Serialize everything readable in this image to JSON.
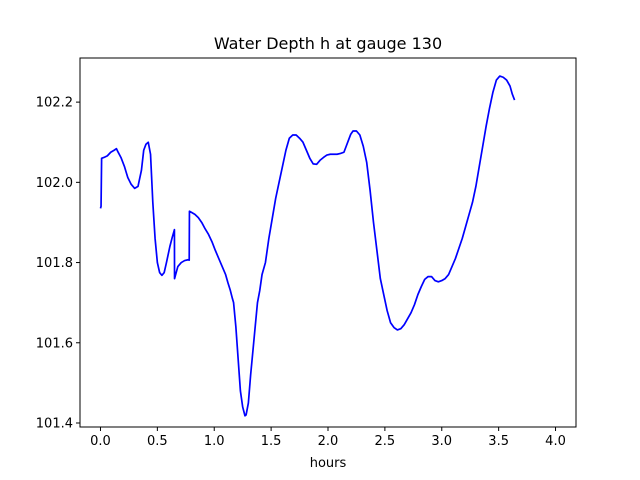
{
  "chart_data": {
    "type": "line",
    "title": "Water Depth h at gauge 130",
    "xlabel": "hours",
    "ylabel": "",
    "xlim": [
      -0.18,
      4.18
    ],
    "ylim": [
      101.39,
      102.31
    ],
    "xticks": [
      0.0,
      0.5,
      1.0,
      1.5,
      2.0,
      2.5,
      3.0,
      3.5,
      4.0
    ],
    "xtick_labels": [
      "0.0",
      "0.5",
      "1.0",
      "1.5",
      "2.0",
      "2.5",
      "3.0",
      "3.5",
      "4.0"
    ],
    "yticks": [
      101.4,
      101.6,
      101.8,
      102.0,
      102.2
    ],
    "ytick_labels": [
      "101.4",
      "101.6",
      "101.8",
      "102.0",
      "102.2"
    ],
    "grid": false,
    "series": [
      {
        "color": "#0000ff",
        "points": [
          [
            0.0,
            101.935
          ],
          [
            0.005,
            101.94
          ],
          [
            0.01,
            102.06
          ],
          [
            0.03,
            102.062
          ],
          [
            0.06,
            102.066
          ],
          [
            0.09,
            102.075
          ],
          [
            0.12,
            102.08
          ],
          [
            0.14,
            102.084
          ],
          [
            0.15,
            102.078
          ],
          [
            0.18,
            102.062
          ],
          [
            0.21,
            102.04
          ],
          [
            0.24,
            102.012
          ],
          [
            0.27,
            101.995
          ],
          [
            0.3,
            101.985
          ],
          [
            0.33,
            101.99
          ],
          [
            0.36,
            102.03
          ],
          [
            0.38,
            102.08
          ],
          [
            0.4,
            102.095
          ],
          [
            0.42,
            102.1
          ],
          [
            0.44,
            102.07
          ],
          [
            0.46,
            101.95
          ],
          [
            0.48,
            101.86
          ],
          [
            0.5,
            101.8
          ],
          [
            0.52,
            101.775
          ],
          [
            0.54,
            101.768
          ],
          [
            0.56,
            101.775
          ],
          [
            0.58,
            101.8
          ],
          [
            0.61,
            101.84
          ],
          [
            0.63,
            101.862
          ],
          [
            0.65,
            101.882
          ],
          [
            0.651,
            101.76
          ],
          [
            0.68,
            101.79
          ],
          [
            0.71,
            101.8
          ],
          [
            0.74,
            101.805
          ],
          [
            0.77,
            101.807
          ],
          [
            0.78,
            101.806
          ],
          [
            0.782,
            101.928
          ],
          [
            0.8,
            101.925
          ],
          [
            0.83,
            101.92
          ],
          [
            0.86,
            101.912
          ],
          [
            0.89,
            101.9
          ],
          [
            0.92,
            101.884
          ],
          [
            0.95,
            101.87
          ],
          [
            0.98,
            101.852
          ],
          [
            1.01,
            101.83
          ],
          [
            1.04,
            101.81
          ],
          [
            1.07,
            101.79
          ],
          [
            1.1,
            101.77
          ],
          [
            1.12,
            101.75
          ],
          [
            1.14,
            101.732
          ],
          [
            1.16,
            101.71
          ],
          [
            1.17,
            101.7
          ],
          [
            1.19,
            101.64
          ],
          [
            1.21,
            101.56
          ],
          [
            1.23,
            101.48
          ],
          [
            1.25,
            101.44
          ],
          [
            1.27,
            101.418
          ],
          [
            1.28,
            101.42
          ],
          [
            1.3,
            101.45
          ],
          [
            1.32,
            101.52
          ],
          [
            1.34,
            101.58
          ],
          [
            1.36,
            101.64
          ],
          [
            1.38,
            101.7
          ],
          [
            1.4,
            101.73
          ],
          [
            1.42,
            101.77
          ],
          [
            1.45,
            101.8
          ],
          [
            1.48,
            101.86
          ],
          [
            1.51,
            101.91
          ],
          [
            1.54,
            101.96
          ],
          [
            1.57,
            102.0
          ],
          [
            1.6,
            102.04
          ],
          [
            1.63,
            102.08
          ],
          [
            1.66,
            102.11
          ],
          [
            1.69,
            102.118
          ],
          [
            1.72,
            102.118
          ],
          [
            1.75,
            102.11
          ],
          [
            1.78,
            102.1
          ],
          [
            1.81,
            102.08
          ],
          [
            1.84,
            102.06
          ],
          [
            1.87,
            102.046
          ],
          [
            1.9,
            102.045
          ],
          [
            1.93,
            102.055
          ],
          [
            1.96,
            102.062
          ],
          [
            1.99,
            102.068
          ],
          [
            2.02,
            102.07
          ],
          [
            2.05,
            102.07
          ],
          [
            2.08,
            102.07
          ],
          [
            2.11,
            102.072
          ],
          [
            2.14,
            102.075
          ],
          [
            2.16,
            102.09
          ],
          [
            2.18,
            102.105
          ],
          [
            2.2,
            102.12
          ],
          [
            2.22,
            102.128
          ],
          [
            2.25,
            102.128
          ],
          [
            2.28,
            102.118
          ],
          [
            2.31,
            102.09
          ],
          [
            2.34,
            102.05
          ],
          [
            2.37,
            101.98
          ],
          [
            2.4,
            101.9
          ],
          [
            2.43,
            101.83
          ],
          [
            2.46,
            101.76
          ],
          [
            2.49,
            101.72
          ],
          [
            2.52,
            101.68
          ],
          [
            2.55,
            101.65
          ],
          [
            2.58,
            101.638
          ],
          [
            2.61,
            101.632
          ],
          [
            2.64,
            101.635
          ],
          [
            2.67,
            101.645
          ],
          [
            2.7,
            101.66
          ],
          [
            2.73,
            101.675
          ],
          [
            2.76,
            101.695
          ],
          [
            2.79,
            101.72
          ],
          [
            2.82,
            101.74
          ],
          [
            2.85,
            101.758
          ],
          [
            2.88,
            101.765
          ],
          [
            2.91,
            101.765
          ],
          [
            2.94,
            101.755
          ],
          [
            2.97,
            101.752
          ],
          [
            3.0,
            101.755
          ],
          [
            3.03,
            101.76
          ],
          [
            3.06,
            101.77
          ],
          [
            3.09,
            101.79
          ],
          [
            3.12,
            101.81
          ],
          [
            3.15,
            101.835
          ],
          [
            3.18,
            101.86
          ],
          [
            3.21,
            101.89
          ],
          [
            3.24,
            101.92
          ],
          [
            3.27,
            101.95
          ],
          [
            3.3,
            101.99
          ],
          [
            3.33,
            102.04
          ],
          [
            3.36,
            102.09
          ],
          [
            3.39,
            102.14
          ],
          [
            3.42,
            102.185
          ],
          [
            3.45,
            102.225
          ],
          [
            3.48,
            102.255
          ],
          [
            3.51,
            102.265
          ],
          [
            3.54,
            102.262
          ],
          [
            3.57,
            102.255
          ],
          [
            3.6,
            102.24
          ],
          [
            3.62,
            102.22
          ],
          [
            3.64,
            102.205
          ]
        ]
      }
    ]
  }
}
